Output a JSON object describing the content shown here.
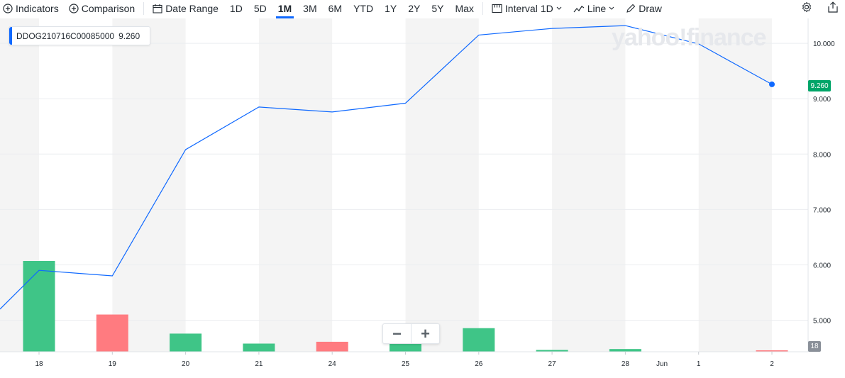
{
  "toolbar": {
    "indicators": "Indicators",
    "comparison": "Comparison",
    "date_range": "Date Range",
    "ranges": [
      "1D",
      "5D",
      "1M",
      "3M",
      "6M",
      "YTD",
      "1Y",
      "2Y",
      "5Y",
      "Max"
    ],
    "active_range": "1M",
    "interval_label": "Interval",
    "interval_value": "1D",
    "chart_type": "Line",
    "draw": "Draw",
    "icons": [
      "plus-circle-icon",
      "calendar-icon",
      "interval-icon",
      "line-chart-icon",
      "pencil-icon",
      "gear-icon",
      "share-icon"
    ]
  },
  "legend": {
    "symbol": "DDOG210716C00085000",
    "value": "9.260"
  },
  "watermark": "yahoo!finance",
  "last_price_label": "9.260",
  "volume_label": "18",
  "zoom": {
    "minus": "−",
    "plus": "+"
  },
  "colors": {
    "line": "#0f69ff",
    "up": "#3fc587",
    "down": "#ff7b80",
    "price_flag": "#00a568",
    "accent": "#0f69ff"
  },
  "chart_data": {
    "type": "line",
    "x": [
      "18",
      "19",
      "20",
      "21",
      "24",
      "25",
      "26",
      "27",
      "28",
      "1",
      "2"
    ],
    "month_label": "Jun",
    "series": [
      {
        "values": [
          5.9,
          5.8,
          8.08,
          8.85,
          8.76,
          8.92,
          10.15,
          10.27,
          10.32,
          9.99,
          9.26
        ]
      }
    ],
    "start_value": 5.2,
    "volume": [
      {
        "x": "18",
        "value": 100,
        "dir": "up"
      },
      {
        "x": "19",
        "value": 41,
        "dir": "down"
      },
      {
        "x": "20",
        "value": 20,
        "dir": "up"
      },
      {
        "x": "21",
        "value": 9,
        "dir": "up"
      },
      {
        "x": "24",
        "value": 11,
        "dir": "down"
      },
      {
        "x": "25",
        "value": 12,
        "dir": "up"
      },
      {
        "x": "26",
        "value": 26,
        "dir": "up"
      },
      {
        "x": "27",
        "value": 2,
        "dir": "up"
      },
      {
        "x": "28",
        "value": 3,
        "dir": "up"
      },
      {
        "x": "2",
        "value": 1.5,
        "dir": "down"
      }
    ],
    "y_ticks": [
      "5.000",
      "6.000",
      "7.000",
      "8.000",
      "9.000",
      "10.000"
    ],
    "ylim": [
      4.43,
      10.45
    ],
    "grid": true
  }
}
